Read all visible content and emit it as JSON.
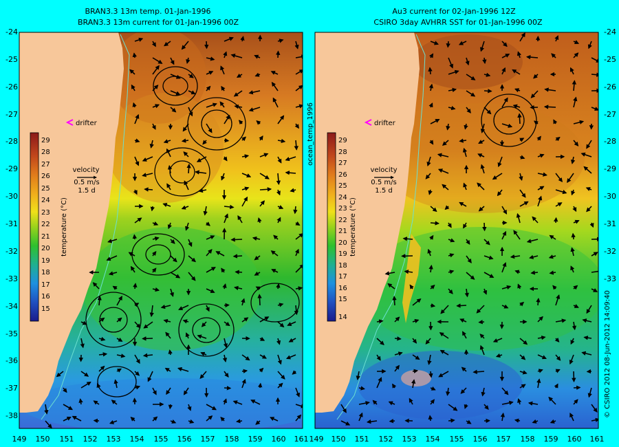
{
  "left_panel": {
    "title_line1": "BRAN3.3 13m temp. 01-Jan-1996",
    "title_line2": "BRAN3.3 13m current for 01-Jan-1996 00Z",
    "colorbar": {
      "label": "temperature (°C)",
      "ticks": [
        "29",
        "28",
        "27",
        "26",
        "25",
        "24",
        "23",
        "22",
        "21",
        "20",
        "19",
        "18",
        "17",
        "16",
        "15"
      ]
    }
  },
  "right_panel": {
    "title_line1": "Au3 current for 02-Jan-1996 12Z",
    "title_line2": "CSIRO 3day AVHRR SST for 01-Jan-1996 00Z",
    "colorbar": {
      "label": "temperature (°C)",
      "ticks": [
        "29",
        "28",
        "27",
        "26",
        "25",
        "24",
        "23",
        "22",
        "21",
        "20",
        "19",
        "18",
        "17",
        "16",
        "15",
        "14"
      ]
    }
  },
  "legend": {
    "drifter_label": "drifter",
    "velocity_label": "velocity",
    "velocity_scale": "0.5 m/s",
    "velocity_time": "1.5 d"
  },
  "mid_label": "ocean_temp_1996",
  "credit": "© CSIRO 2012   08-Jun-2012 14:09:40",
  "axes": {
    "lat_ticks": [
      "-24",
      "-25",
      "-26",
      "-27",
      "-28",
      "-29",
      "-30",
      "-31",
      "-32",
      "-33",
      "-34",
      "-35",
      "-36",
      "-37",
      "-38"
    ],
    "lon_ticks": [
      "149",
      "150",
      "151",
      "152",
      "153",
      "154",
      "155",
      "156",
      "157",
      "158",
      "159",
      "160",
      "161"
    ]
  },
  "colors": {
    "background": "#00ffff",
    "land": "#f7c79a",
    "warm": "#c55a18",
    "cool": "#2a8fe0",
    "drifter_marker": "#ff00ff"
  }
}
